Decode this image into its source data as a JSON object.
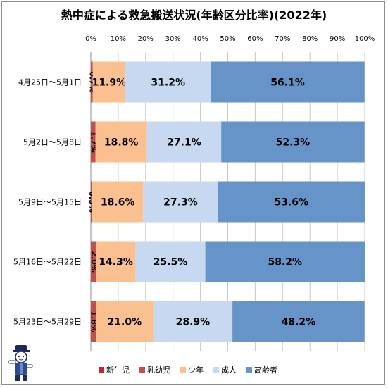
{
  "title": "熱中症による救急搬送状況(年齢区分比率)(2022年)",
  "chart_data": {
    "type": "bar",
    "orientation": "horizontal",
    "stacked": "percent",
    "categories": [
      "4月25日～5月1日",
      "5月2日～5月8日",
      "5月9日～5月15日",
      "5月16日～5月22日",
      "5月23日～5月29日"
    ],
    "x_ticks": [
      "0%",
      "10%",
      "20%",
      "30%",
      "40%",
      "50%",
      "60%",
      "70%",
      "80%",
      "90%",
      "100%"
    ],
    "xlim": [
      0,
      100
    ],
    "legend_position": "bottom",
    "grid": true,
    "series": [
      {
        "name": "新生児",
        "color": "#c0272d",
        "values": [
          0.0,
          0.0,
          0.0,
          0.0,
          0.0
        ],
        "labels": [
          "",
          "",
          "",
          "",
          ""
        ]
      },
      {
        "name": "乳幼児",
        "color": "#c0504d",
        "values": [
          0.7,
          1.7,
          0.5,
          2.0,
          1.8
        ],
        "labels": [
          "0.7%",
          "1.7%",
          "0.5%",
          "2.0%",
          "1.8%"
        ]
      },
      {
        "name": "少年",
        "color": "#fac090",
        "values": [
          11.9,
          18.8,
          18.6,
          14.3,
          21.0
        ],
        "labels": [
          "11.9%",
          "18.8%",
          "18.6%",
          "14.3%",
          "21.0%"
        ]
      },
      {
        "name": "成人",
        "color": "#c6d9f1",
        "values": [
          31.2,
          27.1,
          27.3,
          25.5,
          28.9
        ],
        "labels": [
          "31.2%",
          "27.1%",
          "27.3%",
          "25.5%",
          "28.9%"
        ]
      },
      {
        "name": "高齢者",
        "color": "#6794c8",
        "values": [
          56.1,
          52.3,
          53.6,
          58.2,
          48.2
        ],
        "labels": [
          "56.1%",
          "52.3%",
          "53.6%",
          "58.2%",
          "48.2%"
        ]
      }
    ]
  }
}
